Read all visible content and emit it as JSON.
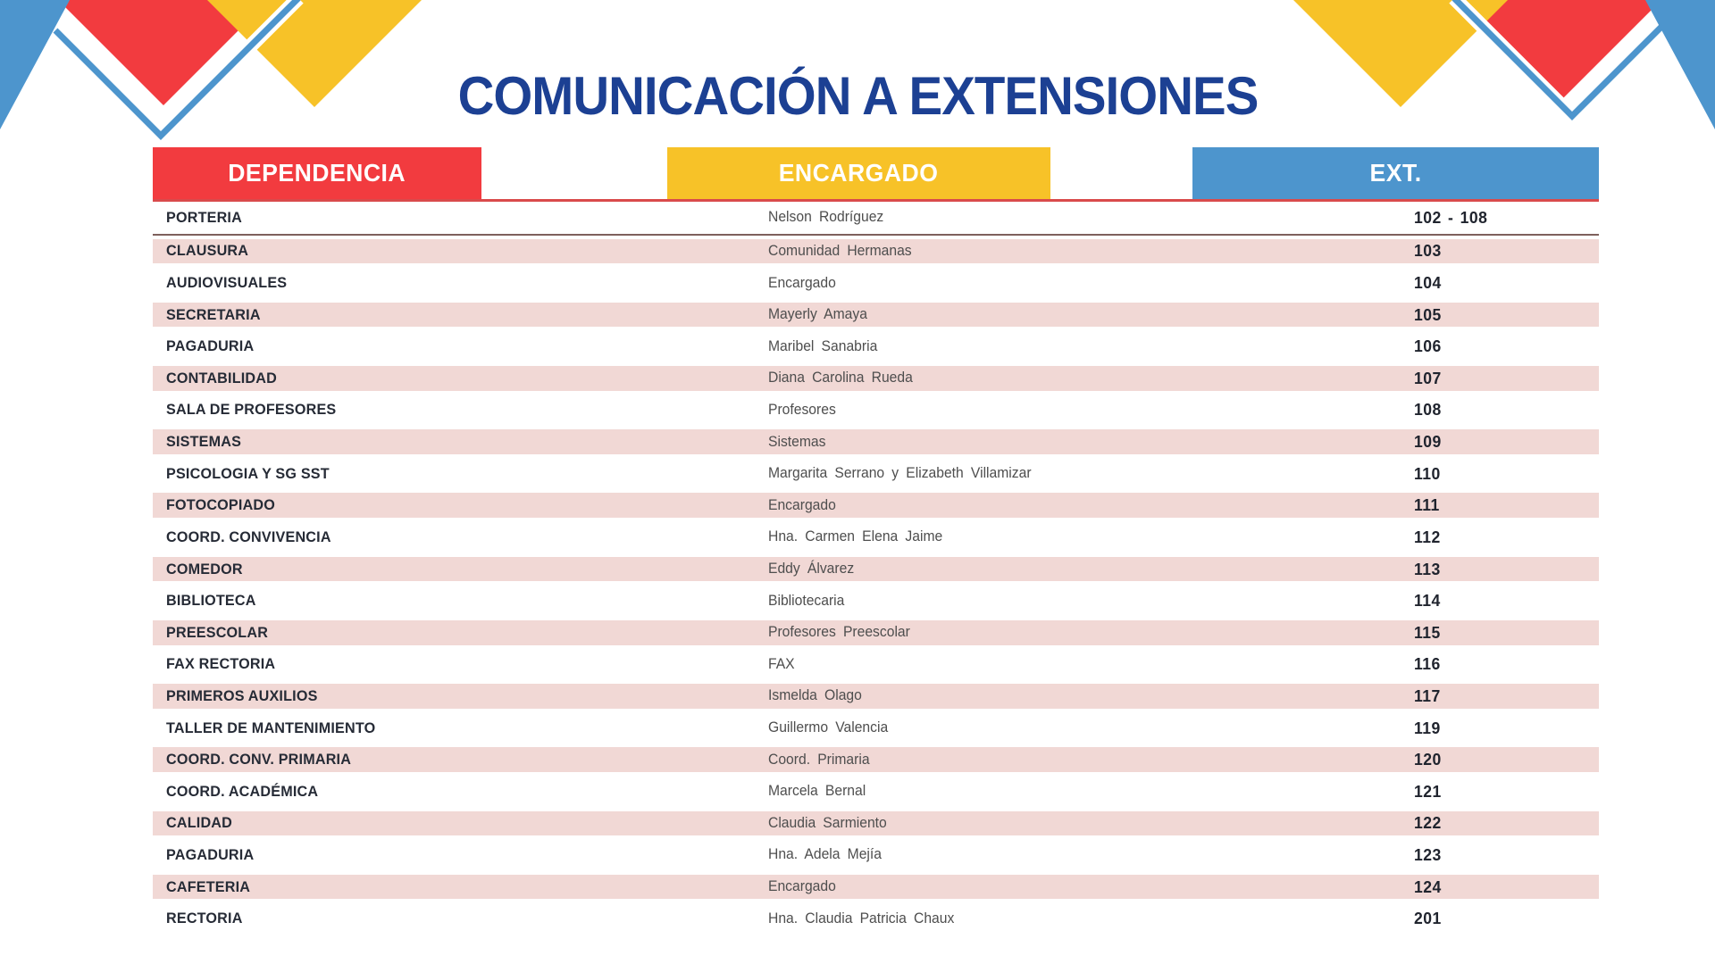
{
  "title": "COMUNICACIÓN A EXTENSIONES",
  "colors": {
    "title_navy": "#1C4093",
    "header_red": "#F23B3F",
    "header_yellow": "#F7C228",
    "header_blue": "#4D95CD",
    "row_stripe_pink": "#F1D8D5",
    "header_underline_red": "#D94A4C"
  },
  "table": {
    "headers": {
      "dependencia": "DEPENDENCIA",
      "encargado": "ENCARGADO",
      "ext": "EXT."
    },
    "rows": [
      {
        "dependencia": "PORTERIA",
        "encargado": "Nelson Rodríguez",
        "ext": "102 - 108"
      },
      {
        "dependencia": "CLAUSURA",
        "encargado": "Comunidad Hermanas",
        "ext": "103"
      },
      {
        "dependencia": "AUDIOVISUALES",
        "encargado": "Encargado",
        "ext": "104"
      },
      {
        "dependencia": "SECRETARIA",
        "encargado": "Mayerly Amaya",
        "ext": "105"
      },
      {
        "dependencia": "PAGADURIA",
        "encargado": "Maribel Sanabria",
        "ext": "106"
      },
      {
        "dependencia": "CONTABILIDAD",
        "encargado": "Diana Carolina Rueda",
        "ext": "107"
      },
      {
        "dependencia": "SALA DE PROFESORES",
        "encargado": "Profesores",
        "ext": "108"
      },
      {
        "dependencia": "SISTEMAS",
        "encargado": "Sistemas",
        "ext": "109"
      },
      {
        "dependencia": "PSICOLOGIA Y SG SST",
        "encargado": "Margarita Serrano y Elizabeth Villamizar",
        "ext": "110"
      },
      {
        "dependencia": "FOTOCOPIADO",
        "encargado": "Encargado",
        "ext": "111"
      },
      {
        "dependencia": "COORD. CONVIVENCIA",
        "encargado": "Hna. Carmen Elena Jaime",
        "ext": "112"
      },
      {
        "dependencia": "COMEDOR",
        "encargado": "Eddy Álvarez",
        "ext": "113"
      },
      {
        "dependencia": "BIBLIOTECA",
        "encargado": "Bibliotecaria",
        "ext": "114"
      },
      {
        "dependencia": "PREESCOLAR",
        "encargado": "Profesores Preescolar",
        "ext": "115"
      },
      {
        "dependencia": "FAX RECTORIA",
        "encargado": "FAX",
        "ext": "116"
      },
      {
        "dependencia": "PRIMEROS AUXILIOS",
        "encargado": "Ismelda Olago",
        "ext": "117"
      },
      {
        "dependencia": "TALLER DE MANTENIMIENTO",
        "encargado": "Guillermo Valencia",
        "ext": "119"
      },
      {
        "dependencia": "COORD. CONV. PRIMARIA",
        "encargado": "Coord. Primaria",
        "ext": "120"
      },
      {
        "dependencia": "COORD. ACADÉMICA",
        "encargado": "Marcela Bernal",
        "ext": "121"
      },
      {
        "dependencia": "CALIDAD",
        "encargado": "Claudia Sarmiento",
        "ext": "122"
      },
      {
        "dependencia": "PAGADURIA",
        "encargado": "Hna. Adela Mejía",
        "ext": "123"
      },
      {
        "dependencia": "CAFETERIA",
        "encargado": "Encargado",
        "ext": "124"
      },
      {
        "dependencia": "RECTORIA",
        "encargado": "Hna. Claudia Patricia Chaux",
        "ext": "201"
      }
    ]
  }
}
